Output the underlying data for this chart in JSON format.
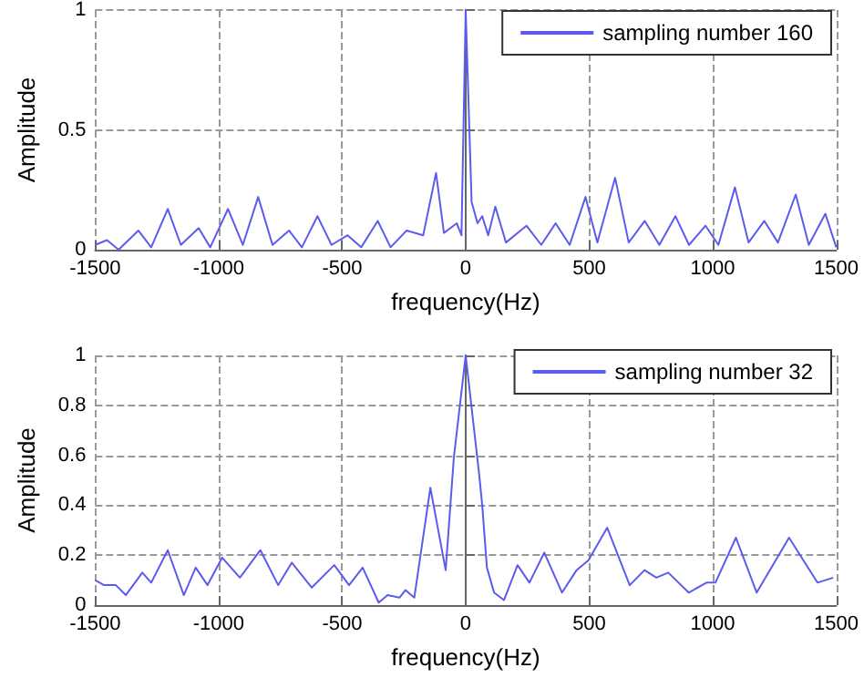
{
  "chart_data": [
    {
      "type": "line",
      "xlabel": "frequency(Hz)",
      "ylabel": "Amplitude",
      "xlim": [
        -1500,
        1500
      ],
      "xticks": [
        -1500,
        -1000,
        -500,
        0,
        500,
        1000,
        1500
      ],
      "ylim": [
        0,
        1
      ],
      "yticks": [
        0,
        0.5,
        1
      ],
      "grid": true,
      "legend": "top right",
      "marker": "none",
      "line_style": "solid",
      "series": [
        {
          "name": "sampling number 160",
          "color": "#5b5bef",
          "x": [
            -1500,
            -1452,
            -1405,
            -1325,
            -1273,
            -1206,
            -1153,
            -1081,
            -1034,
            -962,
            -902,
            -840,
            -782,
            -715,
            -663,
            -600,
            -543,
            -478,
            -423,
            -356,
            -304,
            -239,
            -172,
            -120,
            -88,
            -36,
            -17,
            0,
            24,
            48,
            67,
            91,
            120,
            163,
            246,
            306,
            364,
            421,
            485,
            533,
            605,
            660,
            725,
            784,
            849,
            904,
            971,
            1023,
            1090,
            1145,
            1209,
            1264,
            1336,
            1389,
            1456,
            1500
          ],
          "values": [
            0.02,
            0.04,
            0,
            0.08,
            0.01,
            0.17,
            0.02,
            0.09,
            0.01,
            0.17,
            0.02,
            0.22,
            0.02,
            0.08,
            0.01,
            0.14,
            0.02,
            0.06,
            0.01,
            0.12,
            0.01,
            0.08,
            0.06,
            0.32,
            0.07,
            0.11,
            0.06,
            1.0,
            0.2,
            0.11,
            0.14,
            0.06,
            0.18,
            0.03,
            0.1,
            0.02,
            0.11,
            0.02,
            0.22,
            0.03,
            0.3,
            0.03,
            0.12,
            0.02,
            0.14,
            0.02,
            0.1,
            0.02,
            0.26,
            0.03,
            0.12,
            0.03,
            0.23,
            0.02,
            0.15,
            0.01
          ]
        }
      ]
    },
    {
      "type": "line",
      "xlabel": "frequency(Hz)",
      "ylabel": "Amplitude",
      "xlim": [
        -1500,
        1500
      ],
      "xticks": [
        -1500,
        -1000,
        -500,
        0,
        500,
        1000,
        1500
      ],
      "ylim": [
        0,
        1
      ],
      "yticks": [
        0,
        0.2,
        0.4,
        0.6,
        0.8,
        1
      ],
      "grid": true,
      "legend": "top right",
      "marker": "none",
      "line_style": "solid",
      "series": [
        {
          "name": "sampling number 32",
          "color": "#5b5bef",
          "x": [
            -1500,
            -1464,
            -1416,
            -1376,
            -1309,
            -1273,
            -1206,
            -1141,
            -1093,
            -1045,
            -986,
            -914,
            -831,
            -759,
            -704,
            -623,
            -532,
            -472,
            -417,
            -352,
            -316,
            -268,
            -244,
            -208,
            -143,
            -81,
            -48,
            0,
            55,
            67,
            86,
            115,
            155,
            210,
            258,
            318,
            390,
            449,
            497,
            573,
            664,
            724,
            772,
            820,
            903,
            975,
            1011,
            1094,
            1178,
            1309,
            1424,
            1488
          ],
          "values": [
            0.1,
            0.08,
            0.08,
            0.04,
            0.13,
            0.09,
            0.22,
            0.04,
            0.15,
            0.08,
            0.19,
            0.11,
            0.22,
            0.08,
            0.17,
            0.07,
            0.16,
            0.08,
            0.15,
            0.01,
            0.04,
            0.03,
            0.06,
            0.03,
            0.47,
            0.14,
            0.59,
            1.0,
            0.52,
            0.4,
            0.15,
            0.05,
            0.02,
            0.16,
            0.09,
            0.21,
            0.05,
            0.14,
            0.18,
            0.31,
            0.08,
            0.14,
            0.11,
            0.13,
            0.05,
            0.09,
            0.09,
            0.27,
            0.05,
            0.27,
            0.09,
            0.11
          ]
        }
      ]
    }
  ]
}
